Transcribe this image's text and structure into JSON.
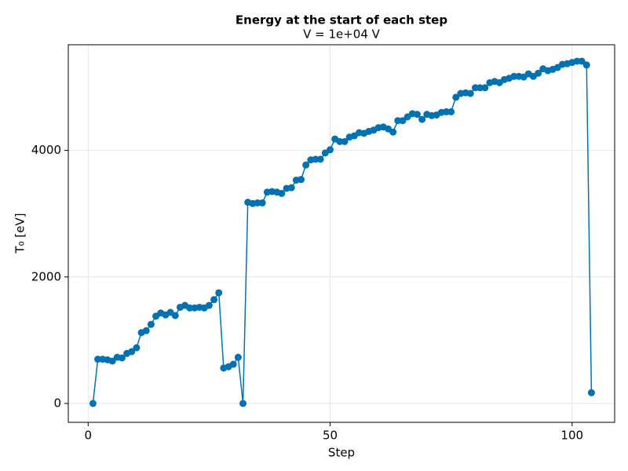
{
  "chart_data": {
    "type": "line",
    "title": "Energy at the start of each step",
    "subtitle": "V = 1e+04 V",
    "x_label": "Step",
    "y_label": "T₀ [eV]",
    "x": [
      1,
      2,
      3,
      4,
      5,
      6,
      7,
      8,
      9,
      10,
      11,
      12,
      13,
      14,
      15,
      16,
      17,
      18,
      19,
      20,
      21,
      22,
      23,
      24,
      25,
      26,
      27,
      28,
      29,
      30,
      31,
      32,
      33,
      34,
      35,
      36,
      37,
      38,
      39,
      40,
      41,
      42,
      43,
      44,
      45,
      46,
      47,
      48,
      49,
      50,
      51,
      52,
      53,
      54,
      55,
      56,
      57,
      58,
      59,
      60,
      61,
      62,
      63,
      64,
      65,
      66,
      67,
      68,
      69,
      70,
      71,
      72,
      73,
      74,
      75,
      76,
      77,
      78,
      79,
      80,
      81,
      82,
      83,
      84,
      85,
      86,
      87,
      88,
      89,
      90,
      91,
      92,
      93,
      94,
      95,
      96,
      97,
      98,
      99,
      100,
      101,
      102,
      103,
      104
    ],
    "series": [
      {
        "color": "#0072b2",
        "markers": true,
        "values": [
          0,
          700,
          700,
          690,
          670,
          730,
          720,
          790,
          820,
          880,
          1120,
          1150,
          1250,
          1380,
          1430,
          1400,
          1440,
          1390,
          1520,
          1550,
          1510,
          1510,
          1520,
          1510,
          1550,
          1640,
          1750,
          560,
          580,
          620,
          730,
          0,
          3180,
          3160,
          3170,
          3170,
          3340,
          3350,
          3340,
          3320,
          3400,
          3410,
          3530,
          3540,
          3770,
          3850,
          3860,
          3860,
          3960,
          4010,
          4180,
          4140,
          4140,
          4210,
          4230,
          4280,
          4270,
          4300,
          4320,
          4360,
          4370,
          4340,
          4290,
          4470,
          4470,
          4530,
          4580,
          4570,
          4490,
          4570,
          4550,
          4560,
          4600,
          4610,
          4610,
          4840,
          4900,
          4910,
          4900,
          4990,
          4990,
          4990,
          5070,
          5090,
          5070,
          5120,
          5140,
          5170,
          5170,
          5160,
          5210,
          5170,
          5220,
          5290,
          5260,
          5280,
          5310,
          5360,
          5370,
          5390,
          5410,
          5410,
          5350,
          170
        ]
      }
    ],
    "xlim": [
      -4.1,
      108.8
    ],
    "xticks": [
      0,
      50,
      100
    ],
    "ylim": [
      -298,
      5670
    ],
    "yticks": [
      0,
      2000,
      4000
    ],
    "grid": true
  }
}
